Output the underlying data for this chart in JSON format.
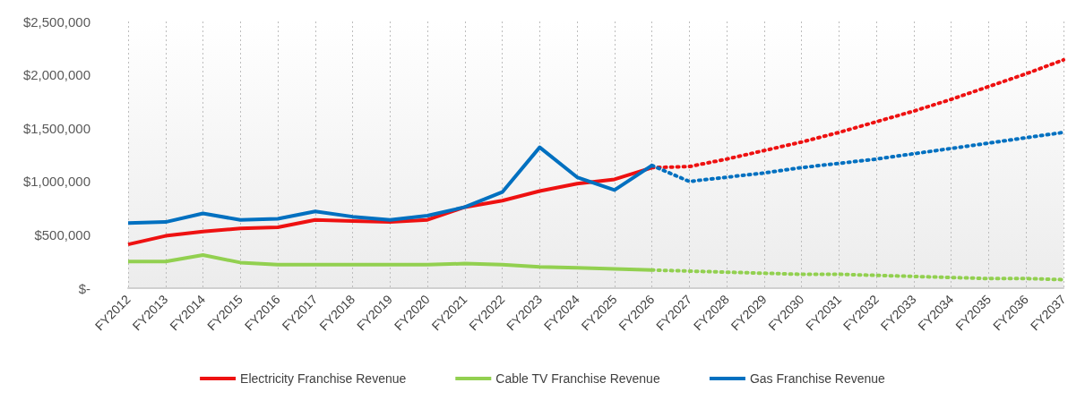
{
  "chart_data": {
    "type": "line",
    "categories": [
      "FY2012",
      "FY2013",
      "FY2014",
      "FY2015",
      "FY2016",
      "FY2017",
      "FY2018",
      "FY2019",
      "FY2020",
      "FY2021",
      "FY2022",
      "FY2023",
      "FY2024",
      "FY2025",
      "FY2026",
      "FY2027",
      "FY2028",
      "FY2029",
      "FY2030",
      "FY2031",
      "FY2032",
      "FY2033",
      "FY2034",
      "FY2035",
      "FY2036",
      "FY2037"
    ],
    "series": [
      {
        "name": "Electricity Franchise Revenue",
        "color": "#ee1111",
        "line_style": "solid",
        "values": [
          410000,
          490000,
          530000,
          560000,
          570000,
          640000,
          630000,
          620000,
          640000,
          760000,
          820000,
          910000,
          980000,
          1020000,
          1130000,
          null,
          null,
          null,
          null,
          null,
          null,
          null,
          null,
          null,
          null,
          null
        ]
      },
      {
        "color": "#ee1111",
        "line_style": "dotted",
        "values": [
          null,
          null,
          null,
          null,
          null,
          null,
          null,
          null,
          null,
          null,
          null,
          null,
          null,
          null,
          1130000,
          1140000,
          1210000,
          1290000,
          1370000,
          1460000,
          1560000,
          1660000,
          1770000,
          1890000,
          2010000,
          2140000
        ]
      },
      {
        "name": "Cable TV Franchise Revenue",
        "color": "#92d050",
        "line_style": "solid",
        "values": [
          250000,
          250000,
          310000,
          240000,
          220000,
          220000,
          220000,
          220000,
          220000,
          230000,
          220000,
          200000,
          190000,
          180000,
          170000,
          null,
          null,
          null,
          null,
          null,
          null,
          null,
          null,
          null,
          null,
          null
        ]
      },
      {
        "color": "#92d050",
        "line_style": "dotted",
        "values": [
          null,
          null,
          null,
          null,
          null,
          null,
          null,
          null,
          null,
          null,
          null,
          null,
          null,
          null,
          170000,
          160000,
          150000,
          140000,
          130000,
          130000,
          120000,
          110000,
          100000,
          90000,
          90000,
          80000
        ]
      },
      {
        "name": "Gas Franchise Revenue",
        "color": "#0070c0",
        "line_style": "solid",
        "values": [
          610000,
          620000,
          700000,
          640000,
          650000,
          720000,
          670000,
          640000,
          680000,
          760000,
          900000,
          1320000,
          1040000,
          920000,
          1150000,
          null,
          null,
          null,
          null,
          null,
          null,
          null,
          null,
          null,
          null,
          null
        ]
      },
      {
        "color": "#0070c0",
        "line_style": "dotted",
        "values": [
          null,
          null,
          null,
          null,
          null,
          null,
          null,
          null,
          null,
          null,
          null,
          null,
          null,
          null,
          1150000,
          1000000,
          1040000,
          1080000,
          1130000,
          1170000,
          1210000,
          1260000,
          1310000,
          1360000,
          1410000,
          1460000
        ]
      }
    ],
    "ylim": [
      0,
      2500000
    ],
    "yticks": [
      {
        "value": 0,
        "label": "$-"
      },
      {
        "value": 500000,
        "label": "$500,000"
      },
      {
        "value": 1000000,
        "label": "$1,000,000"
      },
      {
        "value": 1500000,
        "label": "$1,500,000"
      },
      {
        "value": 2000000,
        "label": "$2,000,000"
      },
      {
        "value": 2500000,
        "label": "$2,500,000"
      }
    ],
    "grid": "x",
    "legend": "bottom",
    "marker": "none"
  }
}
